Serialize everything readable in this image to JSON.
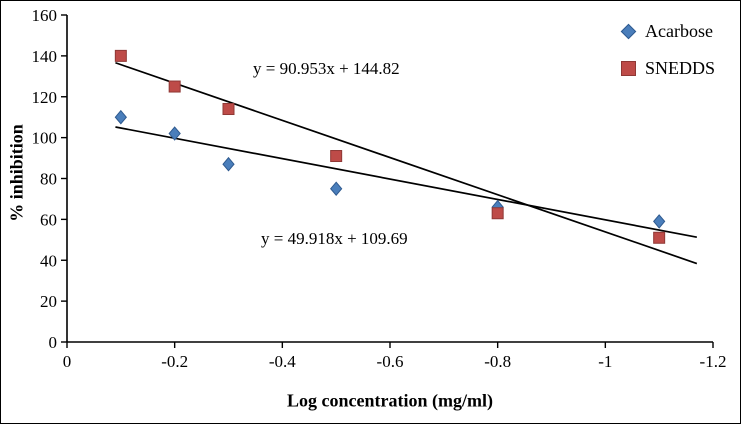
{
  "chart_data": {
    "type": "scatter",
    "title": "",
    "xlabel": "Log concentration (mg/ml)",
    "ylabel": "% inhibition",
    "xlim": [
      0,
      -1.2
    ],
    "ylim": [
      0,
      160
    ],
    "x_ticks": [
      0,
      -0.2,
      -0.4,
      -0.6,
      -0.8,
      -1,
      -1.2
    ],
    "x_tick_labels": [
      "0",
      "-0.2",
      "-0.4",
      "-0.6",
      "-0.8",
      "-1",
      "-1.2"
    ],
    "y_ticks": [
      0,
      20,
      40,
      60,
      80,
      100,
      120,
      140,
      160
    ],
    "y_tick_labels": [
      "0",
      "20",
      "40",
      "60",
      "80",
      "100",
      "120",
      "140",
      "160"
    ],
    "grid": false,
    "legend_position": "top-right",
    "series": [
      {
        "name": "Acarbose",
        "marker": "diamond",
        "color": "#4a7ebb",
        "border_color": "#2f5a8f",
        "x": [
          -0.1,
          -0.2,
          -0.3,
          -0.5,
          -0.8,
          -1.1
        ],
        "y": [
          110,
          102,
          87,
          75,
          66,
          59
        ],
        "trendline": {
          "equation": "y = 49.918x + 109.69",
          "slope": 49.918,
          "intercept": 109.69,
          "x_start": -0.09,
          "x_end": -1.17
        }
      },
      {
        "name": "SNEDDS",
        "marker": "square",
        "color": "#be4b48",
        "border_color": "#8f3835",
        "x": [
          -0.1,
          -0.2,
          -0.3,
          -0.5,
          -0.8,
          -1.1
        ],
        "y": [
          140,
          125,
          114,
          91,
          63,
          51
        ],
        "trendline": {
          "equation": "y = 90.953x + 144.82",
          "slope": 90.953,
          "intercept": 144.82,
          "x_start": -0.09,
          "x_end": -1.17
        }
      }
    ],
    "colors": {
      "axis": "#000000",
      "trendline": "#000000",
      "background": "#ffffff",
      "figure_border": "#000000"
    }
  }
}
